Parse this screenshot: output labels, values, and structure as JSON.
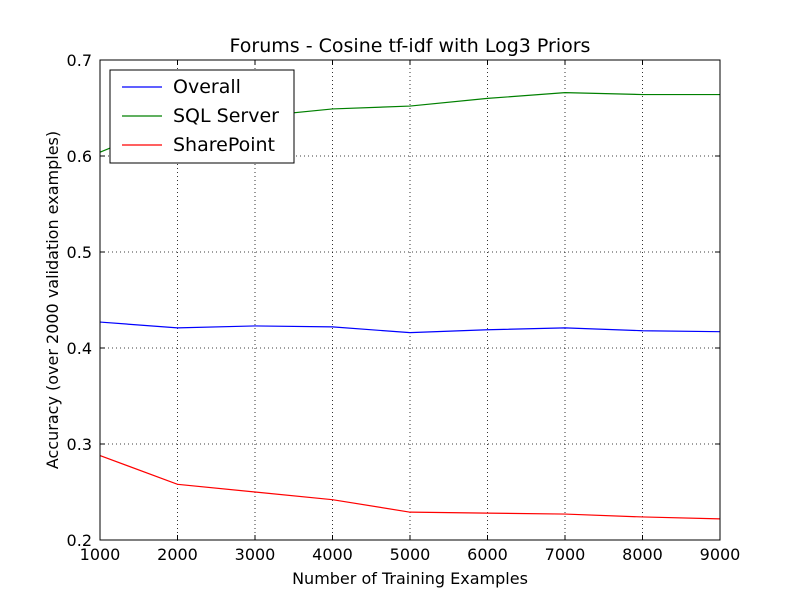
{
  "chart_data": {
    "type": "line",
    "title": "Forums - Cosine tf-idf with Log3 Priors",
    "xlabel": "Number of Training Examples",
    "ylabel": "Accuracy (over 2000 validation examples)",
    "xlim": [
      1000,
      9000
    ],
    "ylim": [
      0.2,
      0.7
    ],
    "x": [
      1000,
      2000,
      3000,
      4000,
      5000,
      6000,
      7000,
      8000,
      9000
    ],
    "xticks": [
      "1000",
      "2000",
      "3000",
      "4000",
      "5000",
      "6000",
      "7000",
      "8000",
      "9000"
    ],
    "yticks": [
      "0.2",
      "0.3",
      "0.4",
      "0.5",
      "0.6",
      "0.7"
    ],
    "ytick_values": [
      0.2,
      0.3,
      0.4,
      0.5,
      0.6,
      0.7
    ],
    "grid": true,
    "legend_position": "top-left",
    "series": [
      {
        "name": "Overall",
        "color": "#0000ff",
        "values": [
          0.427,
          0.421,
          0.423,
          0.422,
          0.416,
          0.419,
          0.421,
          0.418,
          0.417
        ]
      },
      {
        "name": "SQL Server",
        "color": "#008000",
        "values": [
          0.604,
          0.637,
          0.641,
          0.649,
          0.652,
          0.66,
          0.666,
          0.664,
          0.664
        ]
      },
      {
        "name": "SharePoint",
        "color": "#ff0000",
        "values": [
          0.288,
          0.258,
          0.25,
          0.242,
          0.229,
          0.228,
          0.227,
          0.224,
          0.222
        ]
      }
    ]
  }
}
